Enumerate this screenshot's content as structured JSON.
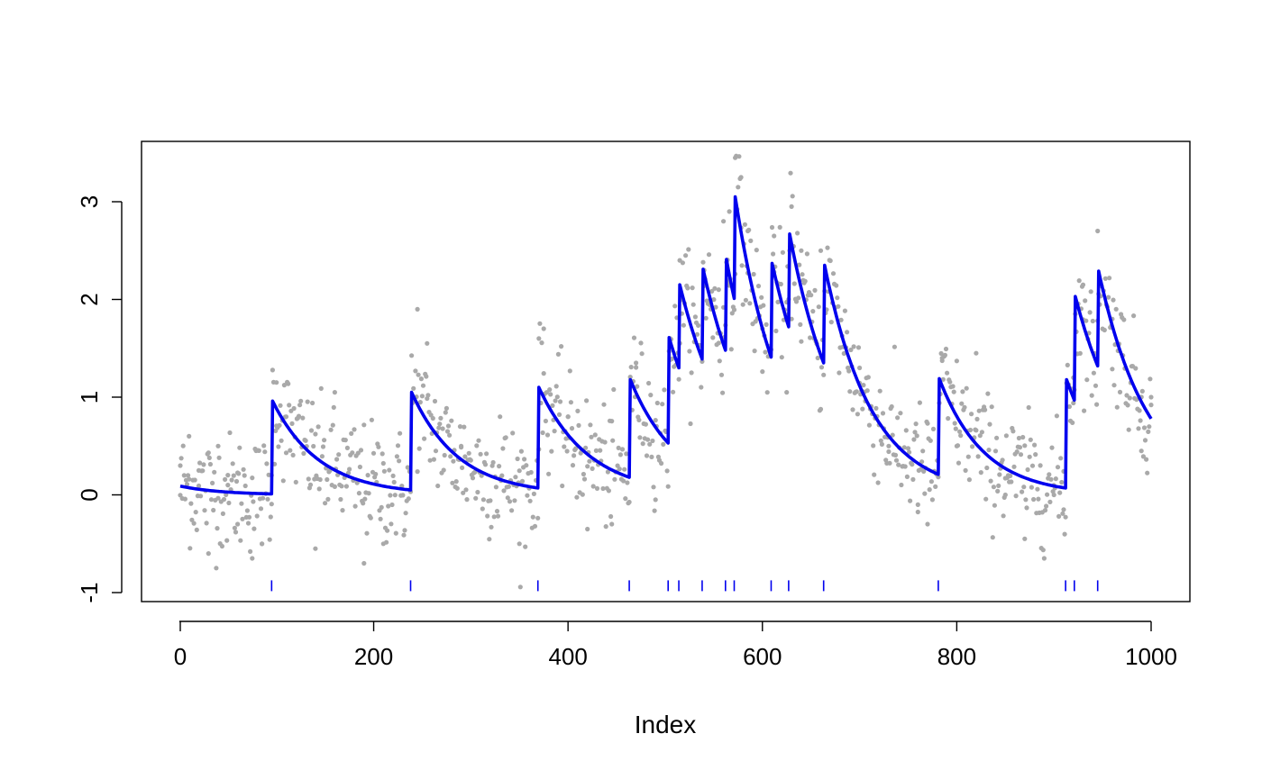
{
  "chart_data": {
    "type": "scatter",
    "title": "",
    "xlabel": "Index",
    "ylabel": "",
    "xlim": [
      0,
      1000
    ],
    "ylim": [
      -1,
      3.5
    ],
    "x_ticks": [
      0,
      200,
      400,
      600,
      800,
      1000
    ],
    "x_tick_labels": [
      "0",
      "200",
      "400",
      "600",
      "800",
      "1000"
    ],
    "y_ticks": [
      -1,
      0,
      1,
      2,
      3
    ],
    "y_tick_labels": [
      "-1",
      "0",
      "1",
      "2",
      "3"
    ],
    "grid": false,
    "colors": {
      "points": "#a9a9a9",
      "line": "#0000ee",
      "rug": "#0000ee"
    },
    "series": [
      {
        "kind": "points",
        "n": 1000,
        "description_source": "noisy observations around the fitted curve",
        "sample_points": [
          [
            1,
            0.3
          ],
          [
            10,
            0.6
          ],
          [
            20,
            0.25
          ],
          [
            30,
            -0.6
          ],
          [
            40,
            0.5
          ],
          [
            50,
            0.1
          ],
          [
            60,
            -0.3
          ],
          [
            75,
            -0.65
          ],
          [
            85,
            -0.5
          ],
          [
            95,
            0.2
          ],
          [
            100,
            1.15
          ],
          [
            110,
            0.8
          ],
          [
            140,
            -0.55
          ],
          [
            160,
            1.05
          ],
          [
            190,
            -0.7
          ],
          [
            210,
            -0.5
          ],
          [
            240,
            1.0
          ],
          [
            245,
            1.9
          ],
          [
            255,
            1.55
          ],
          [
            290,
            0.5
          ],
          [
            330,
            0.8
          ],
          [
            350,
            -0.5
          ],
          [
            370,
            1.6
          ],
          [
            375,
            1.7
          ],
          [
            400,
            0.8
          ],
          [
            420,
            -0.35
          ],
          [
            445,
            -0.3
          ],
          [
            470,
            1.35
          ],
          [
            490,
            -0.05
          ],
          [
            505,
            1.6
          ],
          [
            515,
            2.4
          ],
          [
            540,
            2.3
          ],
          [
            555,
            2.1
          ],
          [
            560,
            2.8
          ],
          [
            566,
            2.9
          ],
          [
            572,
            3.45
          ],
          [
            578,
            3.25
          ],
          [
            585,
            2.7
          ],
          [
            600,
            1.7
          ],
          [
            612,
            2.65
          ],
          [
            625,
            1.05
          ],
          [
            630,
            2.95
          ],
          [
            640,
            2.5
          ],
          [
            660,
            2.5
          ],
          [
            700,
            1.3
          ],
          [
            730,
            0.5
          ],
          [
            760,
            -0.1
          ],
          [
            770,
            -0.3
          ],
          [
            785,
            1.4
          ],
          [
            800,
            0.5
          ],
          [
            820,
            1.45
          ],
          [
            850,
            0.0
          ],
          [
            870,
            -0.45
          ],
          [
            900,
            0.0
          ],
          [
            910,
            -0.15
          ],
          [
            920,
            1.2
          ],
          [
            930,
            2.15
          ],
          [
            945,
            2.7
          ],
          [
            960,
            1.8
          ],
          [
            990,
            0.45
          ],
          [
            1000,
            1.0
          ]
        ]
      },
      {
        "kind": "line",
        "name": "",
        "x": [
          1,
          95,
          96,
          238,
          239,
          369,
          370,
          463,
          464,
          503,
          504,
          514,
          515,
          538,
          539,
          562,
          563,
          571,
          572,
          609,
          610,
          627,
          628,
          663,
          664,
          781,
          782,
          912,
          913,
          921,
          922,
          945,
          946,
          1000
        ],
        "y": [
          0.09,
          0.01,
          0.96,
          0.05,
          1.05,
          0.07,
          1.1,
          0.18,
          1.18,
          0.53,
          1.61,
          1.3,
          2.15,
          1.39,
          2.31,
          1.48,
          2.41,
          2.01,
          3.05,
          1.41,
          2.37,
          1.72,
          2.67,
          1.35,
          2.35,
          0.21,
          1.19,
          0.07,
          1.18,
          0.97,
          2.03,
          1.32,
          2.29,
          0.78
        ]
      },
      {
        "kind": "rug",
        "y": -0.93,
        "x": [
          95,
          238,
          369,
          463,
          503,
          514,
          538,
          562,
          571,
          609,
          627,
          663,
          781,
          912,
          921,
          945
        ]
      }
    ]
  }
}
